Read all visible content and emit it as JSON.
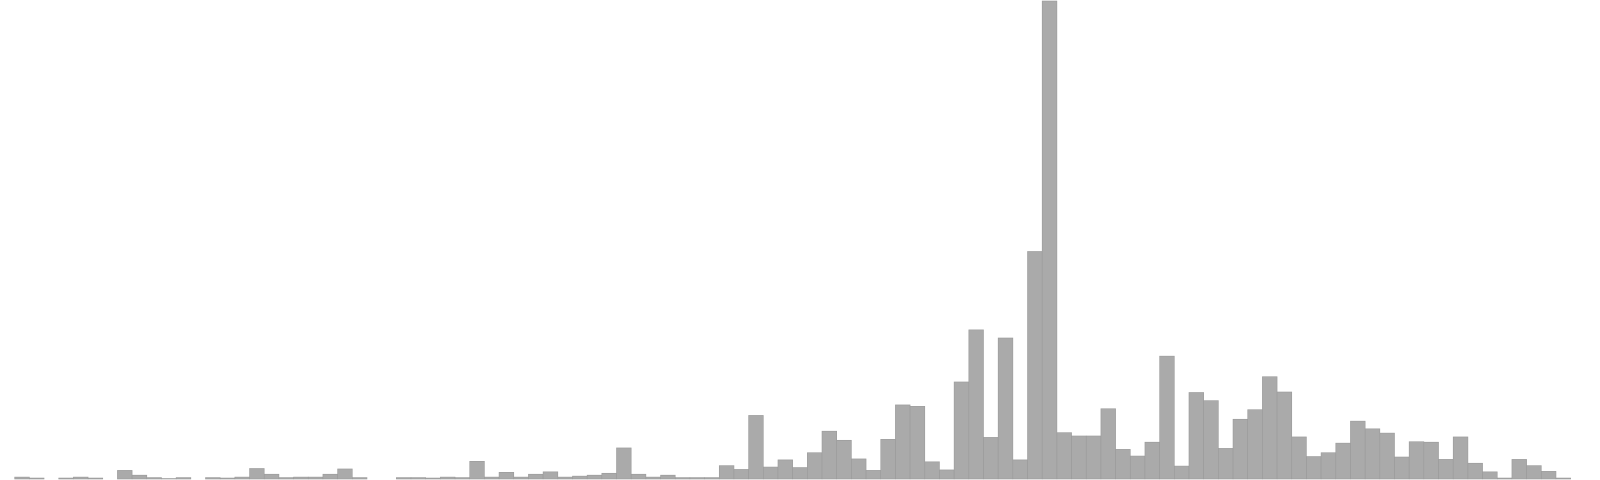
{
  "chart_data": {
    "type": "bar",
    "title": "",
    "xlabel": "",
    "ylabel": "",
    "grid": false,
    "legend": "none",
    "bar_color": "#aaaaaa",
    "bar_edge_color": "#9a9a9a",
    "ylim": [
      0,
      1000
    ],
    "values": [
      0,
      4,
      2,
      0,
      2,
      4,
      2,
      0,
      18,
      8,
      3,
      1,
      3,
      0,
      3,
      2,
      4,
      22,
      10,
      3,
      4,
      4,
      10,
      21,
      3,
      0,
      0,
      3,
      3,
      2,
      4,
      3,
      37,
      4,
      14,
      4,
      10,
      15,
      4,
      6,
      8,
      12,
      65,
      10,
      4,
      8,
      3,
      3,
      3,
      28,
      20,
      133,
      25,
      40,
      24,
      55,
      100,
      81,
      42,
      18,
      83,
      155,
      152,
      36,
      19,
      203,
      312,
      87,
      295,
      40,
      476,
      1000,
      97,
      90,
      90,
      147,
      62,
      48,
      77,
      257,
      27,
      181,
      164,
      64,
      125,
      145,
      214,
      182,
      88,
      47,
      55,
      75,
      121,
      105,
      96,
      46,
      78,
      77,
      41,
      88,
      33,
      15,
      2,
      41,
      28,
      16,
      2,
      0,
      0
    ]
  }
}
